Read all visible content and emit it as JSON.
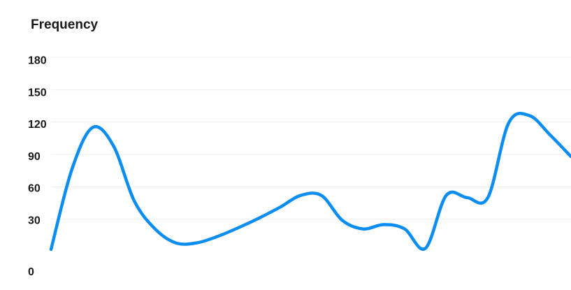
{
  "chart_data": {
    "type": "line",
    "title": "Frequency",
    "xlabel": "",
    "ylabel": "",
    "ylim": [
      0,
      180
    ],
    "yticks": [
      0,
      30,
      60,
      90,
      120,
      150,
      180
    ],
    "grid": true,
    "legend": "none",
    "colors": {
      "line": "#0b8df2",
      "grid": "#eeeeee",
      "text": "#1a1a1a"
    },
    "series": [
      {
        "values": [
          2,
          76,
          115,
          98,
          47,
          21,
          8,
          8,
          14,
          22,
          31,
          41,
          52,
          52,
          29,
          21,
          25,
          21,
          3,
          52,
          50,
          50,
          119,
          126,
          108,
          88
        ]
      }
    ]
  }
}
